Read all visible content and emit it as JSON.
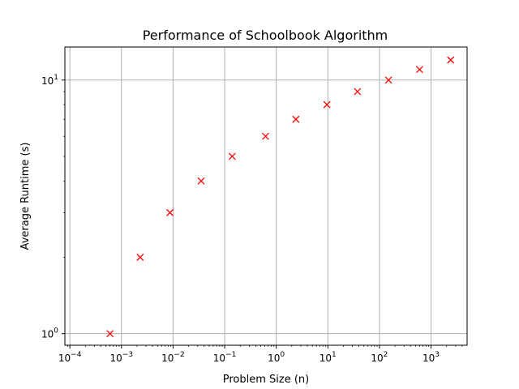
{
  "chart_data": {
    "type": "scatter",
    "title": "Performance of Schoolbook Algorithm",
    "xlabel": "Problem Size (n)",
    "ylabel": "Average Runtime (s)",
    "x_scale": "log",
    "y_scale": "log",
    "xlim": [
      8e-05,
      5000
    ],
    "ylim": [
      0.9,
      13.5
    ],
    "grid": true,
    "marker": "x",
    "marker_color": "#ff0000",
    "x_ticks": [
      {
        "value": 0.0001,
        "base": "10",
        "exp": "−4"
      },
      {
        "value": 0.001,
        "base": "10",
        "exp": "−3"
      },
      {
        "value": 0.01,
        "base": "10",
        "exp": "−2"
      },
      {
        "value": 0.1,
        "base": "10",
        "exp": "−1"
      },
      {
        "value": 1,
        "base": "10",
        "exp": "0"
      },
      {
        "value": 10,
        "base": "10",
        "exp": "1"
      },
      {
        "value": 100,
        "base": "10",
        "exp": "2"
      },
      {
        "value": 1000,
        "base": "10",
        "exp": "3"
      }
    ],
    "y_ticks": [
      {
        "value": 1,
        "base": "10",
        "exp": "0"
      },
      {
        "value": 10,
        "base": "10",
        "exp": "1"
      }
    ],
    "points": [
      {
        "x": 0.0006,
        "y": 1
      },
      {
        "x": 0.0023,
        "y": 2
      },
      {
        "x": 0.0087,
        "y": 3
      },
      {
        "x": 0.035,
        "y": 4
      },
      {
        "x": 0.14,
        "y": 5
      },
      {
        "x": 0.62,
        "y": 6
      },
      {
        "x": 2.4,
        "y": 7
      },
      {
        "x": 9.6,
        "y": 8
      },
      {
        "x": 37.5,
        "y": 9
      },
      {
        "x": 150,
        "y": 10
      },
      {
        "x": 600,
        "y": 11
      },
      {
        "x": 2400,
        "y": 12
      }
    ]
  }
}
